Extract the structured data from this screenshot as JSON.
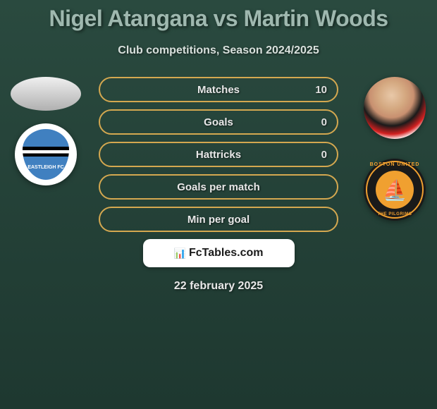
{
  "title": "Nigel Atangana vs Martin Woods",
  "subtitle": "Club competitions, Season 2024/2025",
  "player_left": {
    "name": "Nigel Atangana",
    "club_name": "EASTLEIGH FC"
  },
  "player_right": {
    "name": "Martin Woods",
    "club_top": "BOSTON UNITED",
    "club_bottom": "THE PILGRIMS"
  },
  "stats": [
    {
      "label": "Matches",
      "value_right": "10",
      "fill_right": 0
    },
    {
      "label": "Goals",
      "value_right": "0",
      "fill_right": 0
    },
    {
      "label": "Hattricks",
      "value_right": "0",
      "fill_right": 0
    },
    {
      "label": "Goals per match",
      "value_right": "",
      "fill_right": 0
    },
    {
      "label": "Min per goal",
      "value_right": "",
      "fill_right": 0
    }
  ],
  "footer_brand": "FcTables.com",
  "footer_date": "22 february 2025",
  "colors": {
    "bg_top": "#2a4a3f",
    "bg_bottom": "#1e3830",
    "title_color": "#9fb8af",
    "border_color": "#d4a850",
    "fill_color": "#c89840",
    "text_light": "#e8e8e8"
  }
}
